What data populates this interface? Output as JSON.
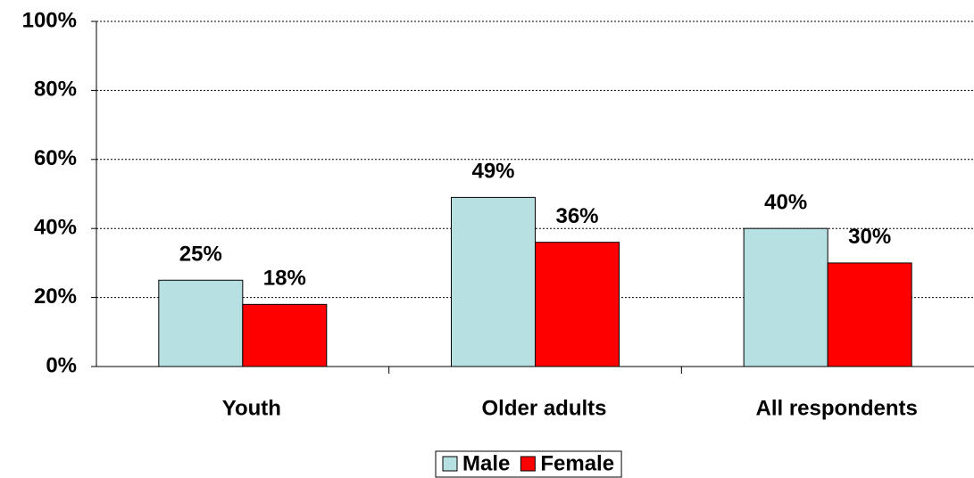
{
  "chart_data": {
    "type": "bar",
    "categories": [
      "Youth",
      "Older adults",
      "All respondents"
    ],
    "series": [
      {
        "name": "Male",
        "color": "#b7e0e3",
        "values": [
          25,
          49,
          40
        ],
        "value_labels": [
          "25%",
          "49%",
          "40%"
        ]
      },
      {
        "name": "Female",
        "color": "#ff0000",
        "values": [
          18,
          36,
          30
        ],
        "value_labels": [
          "18%",
          "36%",
          "30%"
        ]
      }
    ],
    "ylim": [
      0,
      100
    ],
    "yticks": [
      {
        "value": 0,
        "label": "0%"
      },
      {
        "value": 20,
        "label": "20%"
      },
      {
        "value": 40,
        "label": "40%"
      },
      {
        "value": 60,
        "label": "60%"
      },
      {
        "value": 80,
        "label": "80%"
      },
      {
        "value": 100,
        "label": "100%"
      }
    ],
    "grid": true,
    "legend": "bottom"
  }
}
